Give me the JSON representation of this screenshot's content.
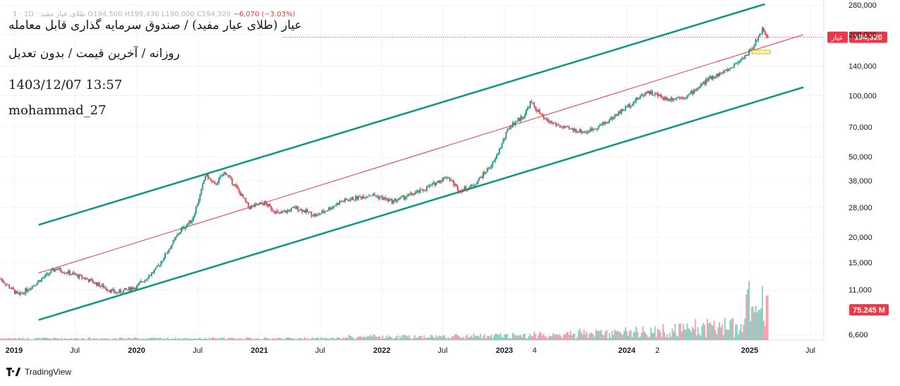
{
  "overlay": {
    "ohlc_symbol": "1 · 1D · طلای عیار مفید",
    "ohlc_open": "O194,500",
    "ohlc_high": "H195,430",
    "ohlc_low": "L190,000",
    "ohlc_close": "C194,320",
    "ohlc_change": "−6,070 (−3.03%)",
    "title": "عیار (طلای عیار مفید) / صندوق سرمایه گذاری قابل معامله",
    "subtitle": "روزانه / آخرین قیمت / بدون تعدیل",
    "datetime": "1403/12/07 13:57",
    "author": "mohammad_27"
  },
  "brand": {
    "name": "TradingView"
  },
  "chart_data": {
    "type": "candlestick",
    "y_scale": "log",
    "ylim": [
      6200,
      285000
    ],
    "xlim": [
      "2018-11-20",
      "2025-08-10"
    ],
    "y_ticks": [
      "280,000",
      "200,000",
      "140,000",
      "100,000",
      "70,000",
      "50,000",
      "38,000",
      "28,000",
      "20,000",
      "15,000",
      "11,000",
      "6,600"
    ],
    "y_tick_values": [
      280000,
      200000,
      140000,
      100000,
      70000,
      50000,
      38000,
      28000,
      20000,
      15000,
      11000,
      6600
    ],
    "x_ticks": [
      "2019",
      "Jul",
      "2020",
      "Jul",
      "2021",
      "Jul",
      "2022",
      "Jul",
      "2023",
      "4",
      "2024",
      "2",
      "2025",
      "Jul"
    ],
    "x_tick_dates": [
      "2019-01-01",
      "2019-07-01",
      "2020-01-01",
      "2020-07-01",
      "2021-01-01",
      "2021-07-01",
      "2022-01-01",
      "2022-07-01",
      "2023-01-01",
      "2023-04-01",
      "2024-01-01",
      "2024-04-01",
      "2025-01-01",
      "2025-07-01"
    ],
    "price_path": [
      {
        "date": "2018-11-20",
        "value": 12500
      },
      {
        "date": "2019-01-15",
        "value": 10300
      },
      {
        "date": "2019-05-05",
        "value": 14000
      },
      {
        "date": "2019-08-01",
        "value": 12500
      },
      {
        "date": "2019-11-01",
        "value": 10600
      },
      {
        "date": "2020-01-01",
        "value": 11400
      },
      {
        "date": "2020-03-01",
        "value": 14000
      },
      {
        "date": "2020-05-10",
        "value": 21500
      },
      {
        "date": "2020-06-15",
        "value": 24500
      },
      {
        "date": "2020-07-10",
        "value": 33000
      },
      {
        "date": "2020-07-25",
        "value": 41000
      },
      {
        "date": "2020-08-20",
        "value": 36000
      },
      {
        "date": "2020-09-20",
        "value": 42000
      },
      {
        "date": "2020-10-20",
        "value": 36000
      },
      {
        "date": "2020-12-01",
        "value": 28000
      },
      {
        "date": "2021-01-15",
        "value": 29500
      },
      {
        "date": "2021-03-01",
        "value": 26000
      },
      {
        "date": "2021-04-20",
        "value": 28000
      },
      {
        "date": "2021-06-20",
        "value": 25500
      },
      {
        "date": "2021-09-01",
        "value": 30000
      },
      {
        "date": "2021-12-01",
        "value": 32500
      },
      {
        "date": "2022-02-01",
        "value": 30000
      },
      {
        "date": "2022-05-01",
        "value": 34000
      },
      {
        "date": "2022-07-15",
        "value": 40000
      },
      {
        "date": "2022-08-20",
        "value": 34000
      },
      {
        "date": "2022-10-01",
        "value": 36000
      },
      {
        "date": "2022-12-01",
        "value": 47000
      },
      {
        "date": "2023-01-15",
        "value": 70000
      },
      {
        "date": "2023-03-01",
        "value": 80000
      },
      {
        "date": "2023-03-20",
        "value": 93000
      },
      {
        "date": "2023-05-01",
        "value": 76000
      },
      {
        "date": "2023-07-01",
        "value": 69000
      },
      {
        "date": "2023-09-01",
        "value": 66000
      },
      {
        "date": "2023-11-01",
        "value": 74000
      },
      {
        "date": "2024-01-01",
        "value": 88000
      },
      {
        "date": "2024-03-01",
        "value": 105000
      },
      {
        "date": "2024-05-01",
        "value": 96000
      },
      {
        "date": "2024-07-01",
        "value": 100000
      },
      {
        "date": "2024-09-01",
        "value": 121000
      },
      {
        "date": "2024-11-01",
        "value": 135000
      },
      {
        "date": "2025-01-01",
        "value": 165000
      },
      {
        "date": "2025-02-10",
        "value": 215000
      },
      {
        "date": "2025-02-25",
        "value": 194320
      }
    ],
    "channel_lines": [
      {
        "name": "upper",
        "color": "#089981",
        "from": {
          "date": "2019-03-15",
          "value": 23000
        },
        "to": {
          "date": "2025-02-15",
          "value": 283000
        }
      },
      {
        "name": "middle",
        "color": "#f23645",
        "from": {
          "date": "2019-03-15",
          "value": 13300
        },
        "to": {
          "date": "2025-06-10",
          "value": 200000
        }
      },
      {
        "name": "lower",
        "color": "#089981",
        "from": {
          "date": "2019-03-15",
          "value": 7800
        },
        "to": {
          "date": "2025-06-10",
          "value": 110000
        }
      }
    ],
    "last_price": {
      "label": "عیار",
      "value": "194,320",
      "color": "#f23645"
    },
    "volume_label": {
      "value": "75.245 M",
      "color": "#f23645"
    },
    "colors": {
      "up": "#089981",
      "down": "#f23645",
      "grid": "#f0f3fa",
      "axis_text": "#131722"
    }
  }
}
